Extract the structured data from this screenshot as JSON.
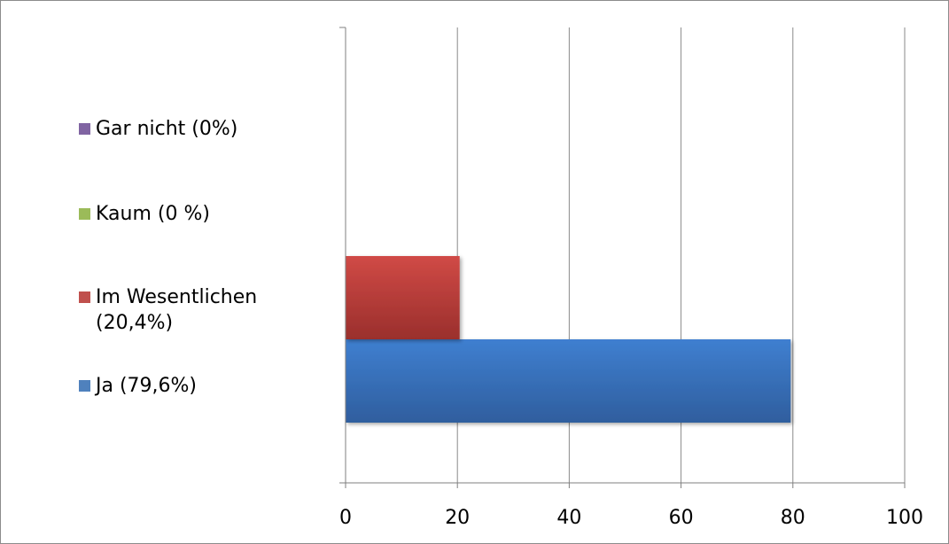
{
  "chart_data": {
    "type": "bar",
    "orientation": "horizontal",
    "series": [
      {
        "name": "Ja (79,6%)",
        "value": 79.6,
        "color": "#4F81BD"
      },
      {
        "name": "Im Wesentlichen (20,4%)",
        "value": 20.4,
        "color": "#C0504D"
      },
      {
        "name": "Kaum (0 %)",
        "value": 0,
        "color": "#9BBB59"
      },
      {
        "name": "Gar nicht (0%)",
        "value": 0,
        "color": "#8064A2"
      }
    ],
    "legend": {
      "placement": "left",
      "items": [
        {
          "lines": [
            "Gar nicht (0%)"
          ],
          "color": "#8064A2"
        },
        {
          "lines": [
            "Kaum (0 %)"
          ],
          "color": "#9BBB59"
        },
        {
          "lines": [
            "Im Wesentlichen",
            "(20,4%)"
          ],
          "color": "#C0504D"
        },
        {
          "lines": [
            "Ja (79,6%)"
          ],
          "color": "#4F81BD"
        }
      ]
    },
    "x_ticks": [
      "0",
      "20",
      "40",
      "60",
      "80",
      "100"
    ],
    "xlim": [
      0,
      100
    ],
    "grid": true,
    "title": "",
    "xlabel": "",
    "ylabel": ""
  }
}
